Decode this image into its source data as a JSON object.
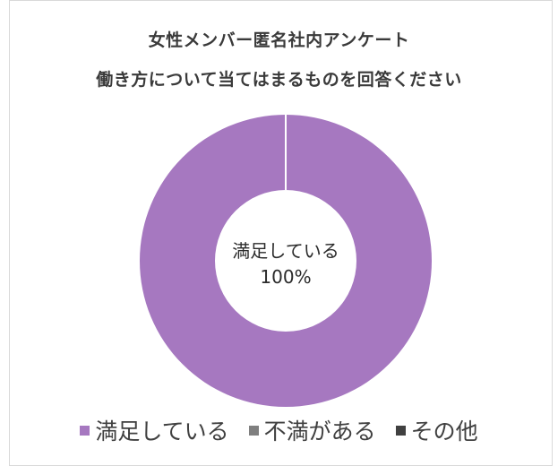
{
  "chart_data": {
    "type": "pie",
    "variant": "donut",
    "title": "女性メンバー匿名社内アンケート",
    "subtitle": "働き方について当てはまるものを回答ください",
    "slices": [
      {
        "label": "満足している",
        "value": 100,
        "color": "#a678c0"
      },
      {
        "label": "不満がある",
        "value": 0,
        "color": "#7f7f7f"
      },
      {
        "label": "その他",
        "value": 0,
        "color": "#404040"
      }
    ],
    "data_labels": [
      {
        "category": "満足している",
        "percent": "100%"
      }
    ],
    "legend_position": "bottom"
  }
}
